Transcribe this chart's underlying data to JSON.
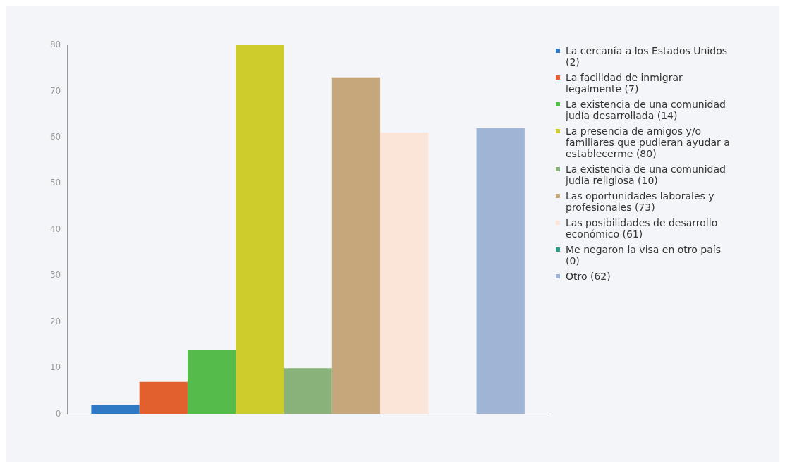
{
  "chart_data": {
    "type": "bar",
    "categories": [
      null
    ],
    "series": [
      {
        "name": "La cercanía a los Estados Unidos (2)",
        "color": "#2f78c4",
        "values": [
          2
        ]
      },
      {
        "name": "La facilidad de inmigrar legalmente (7)",
        "color": "#e2602e",
        "values": [
          7
        ]
      },
      {
        "name": "La existencia de una comunidad judía desarrollada (14)",
        "color": "#55bb4a",
        "values": [
          14
        ]
      },
      {
        "name": "La presencia de amigos y/o familiares que pudieran ayudar a establecerme (80)",
        "color": "#cccc2c",
        "values": [
          80
        ]
      },
      {
        "name": "La existencia de una comunidad judía religiosa (10)",
        "color": "#88b27a",
        "values": [
          10
        ]
      },
      {
        "name": "Las oportunidades laborales y profesionales (73)",
        "color": "#c6a77c",
        "values": [
          73
        ]
      },
      {
        "name": "Las posibilidades de desarrollo económico (61)",
        "color": "#fbe4d8",
        "values": [
          61
        ]
      },
      {
        "name": "Me negaron la visa en otro país (0)",
        "color": "#2a9a88",
        "values": [
          0
        ]
      },
      {
        "name": "Otro (62)",
        "color": "#9fb5d6",
        "values": [
          62
        ]
      }
    ],
    "ylim": [
      0,
      80
    ],
    "yticks": [
      0,
      10,
      20,
      30,
      40,
      50,
      60,
      70,
      80
    ],
    "grid": false,
    "legend": "right"
  }
}
